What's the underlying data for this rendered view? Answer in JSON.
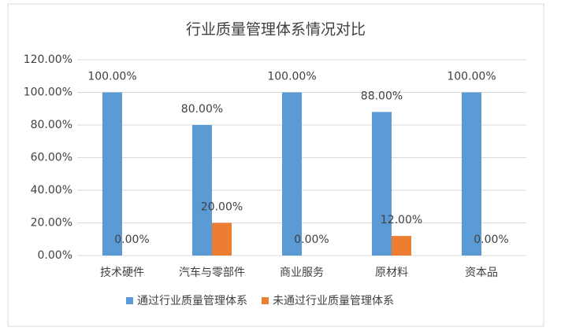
{
  "chart_data": {
    "type": "bar",
    "title": "行业质量管理体系情况对比",
    "categories": [
      "技术硬件",
      "汽车与零部件",
      "商业服务",
      "原材料",
      "资本品"
    ],
    "series": [
      {
        "name": "通过行业质量管理体系",
        "color": "#5b9bd5",
        "values": [
          100,
          80,
          100,
          88,
          100
        ],
        "value_labels": [
          "100.00%",
          "80.00%",
          "100.00%",
          "88.00%",
          "100.00%"
        ]
      },
      {
        "name": "未通过行业质量管理体系",
        "color": "#ed7d31",
        "values": [
          0,
          20,
          0,
          12,
          0
        ],
        "value_labels": [
          "0.00%",
          "20.00%",
          "0.00%",
          "12.00%",
          "0.00%"
        ]
      }
    ],
    "ylim": [
      0,
      120
    ],
    "yticks": [
      {
        "value": 0,
        "label": "0.00%"
      },
      {
        "value": 20,
        "label": "20.00%"
      },
      {
        "value": 40,
        "label": "40.00%"
      },
      {
        "value": 60,
        "label": "60.00%"
      },
      {
        "value": 80,
        "label": "80.00%"
      },
      {
        "value": 100,
        "label": "100.00%"
      },
      {
        "value": 120,
        "label": "120.00%"
      }
    ],
    "grid": true,
    "legend": "bottom"
  }
}
